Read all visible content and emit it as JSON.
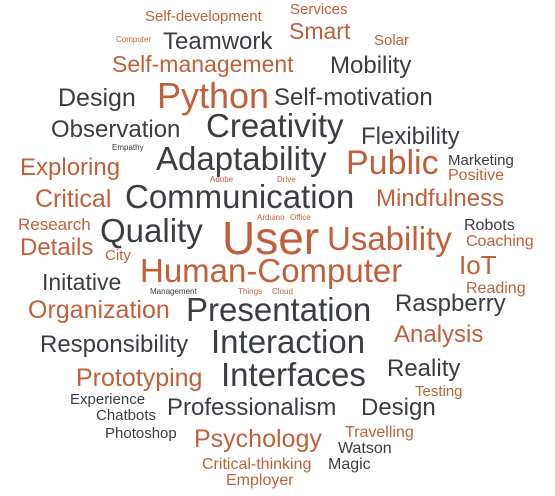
{
  "palette": {
    "dark": "#3a3d42",
    "orange": "#c0603a"
  },
  "words": [
    {
      "text": "Self-development",
      "color": "orange"
    },
    {
      "text": "Services",
      "color": "orange"
    },
    {
      "text": "Computer",
      "color": "orange"
    },
    {
      "text": "Teamwork",
      "color": "dark"
    },
    {
      "text": "Smart",
      "color": "orange"
    },
    {
      "text": "Solar",
      "color": "orange"
    },
    {
      "text": "Self-management",
      "color": "orange"
    },
    {
      "text": "Mobility",
      "color": "dark"
    },
    {
      "text": "Design",
      "color": "dark"
    },
    {
      "text": "Python",
      "color": "orange"
    },
    {
      "text": "Self-motivation",
      "color": "dark"
    },
    {
      "text": "Observation",
      "color": "dark"
    },
    {
      "text": "Creativity",
      "color": "dark"
    },
    {
      "text": "Flexibility",
      "color": "dark"
    },
    {
      "text": "Empathy",
      "color": "dark"
    },
    {
      "text": "Exploring",
      "color": "orange"
    },
    {
      "text": "Adaptability",
      "color": "dark"
    },
    {
      "text": "Public",
      "color": "orange"
    },
    {
      "text": "Marketing",
      "color": "dark"
    },
    {
      "text": "Adobe",
      "color": "orange"
    },
    {
      "text": "Drive",
      "color": "orange"
    },
    {
      "text": "Positive",
      "color": "orange"
    },
    {
      "text": "Critical",
      "color": "orange"
    },
    {
      "text": "Communication",
      "color": "dark"
    },
    {
      "text": "Mindfulness",
      "color": "orange"
    },
    {
      "text": "Research",
      "color": "orange"
    },
    {
      "text": "Arduino",
      "color": "orange"
    },
    {
      "text": "Office",
      "color": "orange"
    },
    {
      "text": "Robots",
      "color": "dark"
    },
    {
      "text": "Quality",
      "color": "dark"
    },
    {
      "text": "User",
      "color": "orange"
    },
    {
      "text": "Usability",
      "color": "orange"
    },
    {
      "text": "Details",
      "color": "orange"
    },
    {
      "text": "City",
      "color": "orange"
    },
    {
      "text": "Coaching",
      "color": "orange"
    },
    {
      "text": "IoT",
      "color": "orange"
    },
    {
      "text": "Human-Computer",
      "color": "orange"
    },
    {
      "text": "Initative",
      "color": "dark"
    },
    {
      "text": "Reading",
      "color": "orange"
    },
    {
      "text": "Management",
      "color": "dark"
    },
    {
      "text": "Things",
      "color": "orange"
    },
    {
      "text": "Cloud",
      "color": "orange"
    },
    {
      "text": "Organization",
      "color": "orange"
    },
    {
      "text": "Presentation",
      "color": "dark"
    },
    {
      "text": "Raspberry",
      "color": "dark"
    },
    {
      "text": "Analysis",
      "color": "orange"
    },
    {
      "text": "Responsibility",
      "color": "dark"
    },
    {
      "text": "Interaction",
      "color": "dark"
    },
    {
      "text": "Reality",
      "color": "dark"
    },
    {
      "text": "Prototyping",
      "color": "orange"
    },
    {
      "text": "Interfaces",
      "color": "dark"
    },
    {
      "text": "Testing",
      "color": "orange"
    },
    {
      "text": "Experience",
      "color": "dark"
    },
    {
      "text": "Professionalism",
      "color": "dark"
    },
    {
      "text": "Design",
      "color": "dark"
    },
    {
      "text": "Chatbots",
      "color": "dark"
    },
    {
      "text": "Photoshop",
      "color": "dark"
    },
    {
      "text": "Psychology",
      "color": "orange"
    },
    {
      "text": "Travelling",
      "color": "orange"
    },
    {
      "text": "Watson",
      "color": "dark"
    },
    {
      "text": "Critical-thinking",
      "color": "orange"
    },
    {
      "text": "Magic",
      "color": "dark"
    },
    {
      "text": "Employer",
      "color": "orange"
    }
  ]
}
